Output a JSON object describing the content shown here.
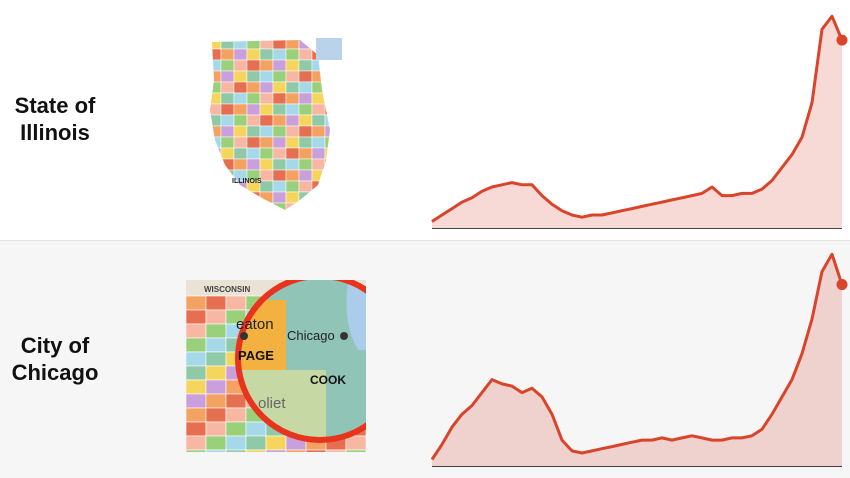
{
  "chart_data": [
    {
      "type": "area",
      "title": "State of Illinois",
      "color": "#d9442b",
      "ylim": [
        0,
        100
      ],
      "values": [
        3,
        6,
        9,
        12,
        14,
        17,
        19,
        20,
        21,
        20,
        20,
        15,
        11,
        8,
        6,
        5,
        6,
        6,
        7,
        8,
        9,
        10,
        11,
        12,
        13,
        14,
        15,
        16,
        19,
        15,
        15,
        16,
        16,
        18,
        22,
        28,
        34,
        42,
        58,
        92,
        98,
        87
      ]
    },
    {
      "type": "area",
      "title": "City of Chicago",
      "color": "#d9442b",
      "ylim": [
        0,
        100
      ],
      "values": [
        3,
        10,
        18,
        24,
        28,
        34,
        40,
        38,
        37,
        34,
        36,
        32,
        24,
        12,
        7,
        6,
        7,
        8,
        9,
        10,
        11,
        12,
        12,
        13,
        12,
        13,
        14,
        13,
        12,
        12,
        13,
        13,
        14,
        17,
        24,
        32,
        40,
        52,
        68,
        90,
        98,
        84
      ]
    }
  ],
  "maps": [
    {
      "labels": [
        "ILLINOIS"
      ]
    },
    {
      "labels": [
        "WISCONSIN",
        "eaton",
        "PAGE",
        "Chicago",
        "COOK",
        "oliet"
      ]
    }
  ]
}
